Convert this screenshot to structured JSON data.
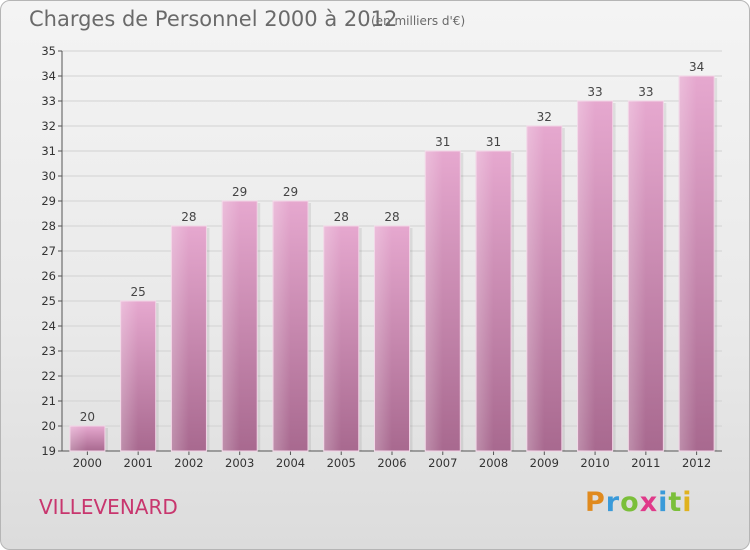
{
  "title": "Charges de Personnel 2000 à 2012",
  "subtitle": "(en milliers d'€)",
  "commune": "VILLEVENARD",
  "logo": {
    "letters": [
      "P",
      "r",
      "o",
      "x",
      "i",
      "t",
      "i"
    ],
    "colors": [
      "#e08a1e",
      "#3a9ad9",
      "#7bbf3a",
      "#e03a8a",
      "#3a9ad9",
      "#7bbf3a",
      "#e0b21e"
    ]
  },
  "chart_data": {
    "type": "bar",
    "title": "Charges de Personnel 2000 à 2012",
    "subtitle": "(en milliers d'€)",
    "categories": [
      "2000",
      "2001",
      "2002",
      "2003",
      "2004",
      "2005",
      "2006",
      "2007",
      "2008",
      "2009",
      "2010",
      "2011",
      "2012"
    ],
    "values": [
      20,
      25,
      28,
      29,
      29,
      28,
      28,
      31,
      31,
      32,
      33,
      33,
      34
    ],
    "ylim": [
      19,
      35
    ],
    "yticks": [
      19,
      20,
      21,
      22,
      23,
      24,
      25,
      26,
      27,
      28,
      29,
      30,
      31,
      32,
      33,
      34,
      35
    ],
    "grid": true,
    "bar_color": "#d88fb8"
  }
}
